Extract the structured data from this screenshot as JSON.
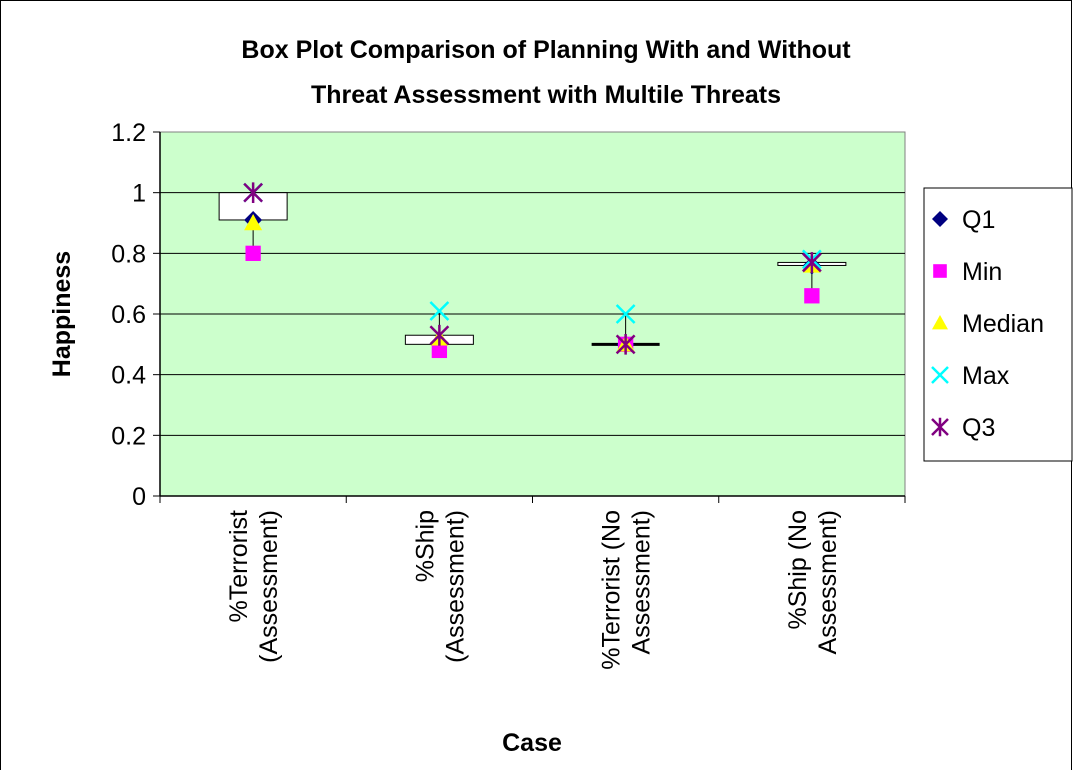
{
  "chart_data": {
    "type": "box",
    "title_lines": [
      "Box Plot Comparison of Planning With and Without",
      "Threat Assessment with Multile Threats"
    ],
    "xlabel": "Case",
    "ylabel": "Happiness",
    "ylim": [
      0,
      1.2
    ],
    "yticks": [
      0,
      0.2,
      0.4,
      0.6,
      0.8,
      1,
      1.2
    ],
    "ytick_labels": [
      "0",
      "0.2",
      "0.4",
      "0.6",
      "0.8",
      "1",
      "1.2"
    ],
    "grid": true,
    "plot_background": "#ccffcc",
    "legend_position": "right",
    "categories": [
      {
        "label_lines": [
          "%Terrorist",
          "(Assessment)"
        ]
      },
      {
        "label_lines": [
          "%Ship",
          "(Assessment)"
        ]
      },
      {
        "label_lines": [
          "%Terrorist (No",
          "Assessment)"
        ]
      },
      {
        "label_lines": [
          "%Ship (No",
          "Assessment)"
        ]
      }
    ],
    "series": [
      {
        "name": "Q1",
        "marker": "diamond",
        "color": "#000080",
        "values": [
          0.91,
          0.5,
          0.5,
          0.76
        ]
      },
      {
        "name": "Min",
        "marker": "square",
        "color": "#ff00ff",
        "values": [
          0.8,
          0.48,
          0.5,
          0.66
        ]
      },
      {
        "name": "Median",
        "marker": "triangle",
        "color": "#ffff00",
        "values": [
          0.9,
          0.52,
          0.5,
          0.76
        ]
      },
      {
        "name": "Max",
        "marker": "x",
        "color": "#00ffff",
        "values": [
          1.0,
          0.61,
          0.6,
          0.78
        ]
      },
      {
        "name": "Q3",
        "marker": "star",
        "color": "#800080",
        "values": [
          1.0,
          0.53,
          0.5,
          0.77
        ]
      }
    ]
  }
}
